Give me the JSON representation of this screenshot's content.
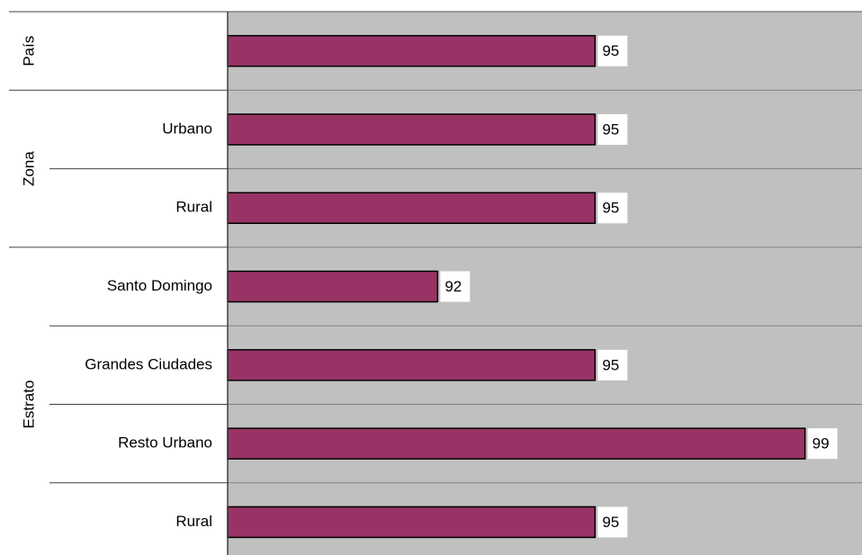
{
  "chart_data": {
    "type": "bar",
    "orientation": "horizontal",
    "color": "#993366",
    "background": "#c0c0c0",
    "xlim": [
      88,
      100
    ],
    "groups": [
      {
        "name": "País",
        "categories": [
          null
        ],
        "values": [
          95
        ]
      },
      {
        "name": "Zona",
        "categories": [
          "Urbano",
          "Rural"
        ],
        "values": [
          95,
          95
        ]
      },
      {
        "name": "Estrato",
        "categories": [
          "Santo Domingo",
          "Grandes Ciudades",
          "Resto Urbano",
          "Rural"
        ],
        "values": [
          92,
          95,
          99,
          95
        ]
      }
    ]
  }
}
